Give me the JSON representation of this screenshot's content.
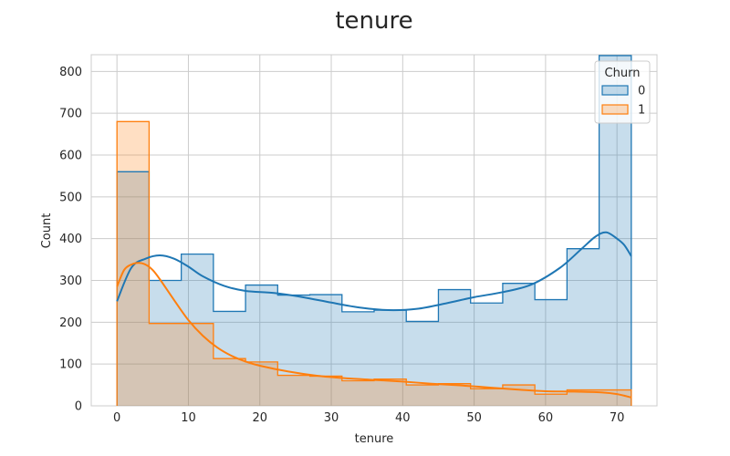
{
  "chart_data": {
    "type": "histogram",
    "title": "tenure",
    "xlabel": "tenure",
    "ylabel": "Count",
    "xlim": [
      -3.6,
      75.6
    ],
    "ylim": [
      0,
      840
    ],
    "x_ticks": [
      0,
      10,
      20,
      30,
      40,
      50,
      60,
      70
    ],
    "y_ticks": [
      0,
      100,
      200,
      300,
      400,
      500,
      600,
      700,
      800
    ],
    "grid": true,
    "legend": {
      "title": "Churn",
      "placement": "top-right"
    },
    "bin_edges": [
      0,
      4.5,
      9,
      13.5,
      18,
      22.5,
      27,
      31.5,
      36,
      40.5,
      45,
      49.5,
      54,
      58.5,
      63,
      67.5,
      72
    ],
    "series": [
      {
        "name": "0",
        "color": "#1f77b4",
        "counts": [
          560,
          300,
          363,
          226,
          289,
          265,
          266,
          225,
          229,
          202,
          278,
          246,
          293,
          254,
          376,
          838
        ],
        "kde_x": [
          0,
          2,
          4,
          6,
          8,
          10,
          12,
          15,
          18,
          22,
          26,
          30,
          34,
          38,
          42,
          46,
          50,
          54,
          58,
          62,
          65,
          67,
          68.5,
          70,
          71,
          72
        ],
        "kde_y": [
          250,
          330,
          352,
          360,
          352,
          333,
          310,
          287,
          275,
          270,
          260,
          247,
          235,
          229,
          232,
          245,
          260,
          272,
          290,
          330,
          375,
          405,
          415,
          400,
          385,
          358
        ]
      },
      {
        "name": "1",
        "color": "#ff7f0e",
        "counts": [
          680,
          197,
          197,
          113,
          105,
          73,
          71,
          60,
          64,
          50,
          53,
          41,
          50,
          28,
          38,
          38
        ],
        "kde_x": [
          0,
          1,
          2,
          3,
          4,
          5,
          6,
          8,
          10,
          12,
          14,
          16,
          18,
          20,
          24,
          28,
          32,
          36,
          40,
          44,
          48,
          52,
          56,
          60,
          64,
          68,
          70,
          72
        ],
        "kde_y": [
          285,
          325,
          338,
          342,
          338,
          325,
          303,
          253,
          205,
          168,
          140,
          120,
          106,
          96,
          82,
          72,
          66,
          62,
          58,
          53,
          49,
          44,
          39,
          35,
          34,
          32,
          28,
          20
        ]
      }
    ]
  }
}
